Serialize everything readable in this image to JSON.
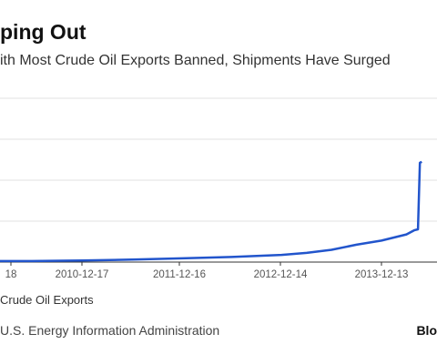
{
  "title": "ping Out",
  "subtitle": "ith Most Crude Oil Exports Banned, Shipments Have Surged",
  "legend_label": "Crude Oil Exports",
  "source": "U.S. Energy Information Administration",
  "brand": "Blo",
  "colors": {
    "line": "#2255cc",
    "grid": "#e2e2e2",
    "axis": "#333333"
  },
  "chart_data": {
    "type": "line",
    "title": "ping Out",
    "subtitle": "ith Most Crude Oil Exports Banned, Shipments Have Surged",
    "xlabel": "",
    "ylabel": "",
    "x_ticks": [
      "18",
      "2010-12-17",
      "2011-12-16",
      "2012-12-14",
      "2013-12-13"
    ],
    "ylim": [
      0,
      8
    ],
    "grid": true,
    "legend_placement": "bottom",
    "series": [
      {
        "name": "Crude Oil Exports",
        "x": [
          "2009-12-18",
          "2010-06-18",
          "2010-12-17",
          "2011-06-17",
          "2011-12-16",
          "2012-06-15",
          "2012-12-14",
          "2013-03-15",
          "2013-06-14",
          "2013-09-13",
          "2013-12-13",
          "2014-03-14",
          "2014-04-11",
          "2014-04-25",
          "2014-05-02",
          "2014-05-09"
        ],
        "y": [
          0.05,
          0.05,
          0.08,
          0.12,
          0.18,
          0.25,
          0.35,
          0.45,
          0.6,
          0.85,
          1.05,
          1.35,
          1.55,
          1.6,
          4.85,
          4.9
        ]
      }
    ]
  }
}
